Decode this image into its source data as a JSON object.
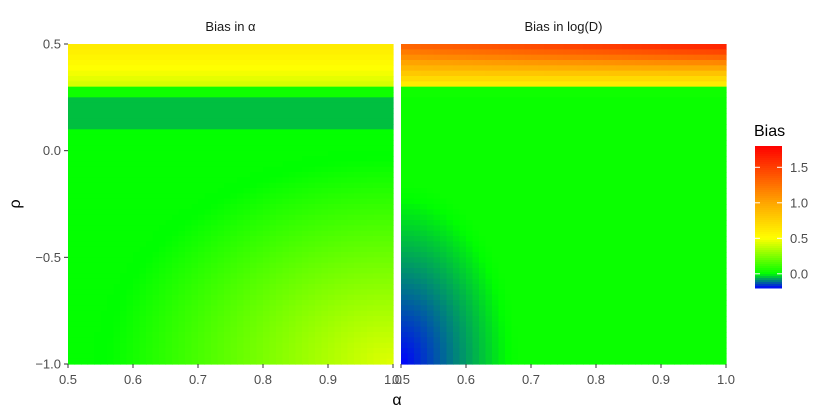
{
  "chart_data": {
    "type": "heatmap",
    "x_label": "α",
    "y_label": "ρ",
    "x_ticks": [
      "0.5",
      "0.6",
      "0.7",
      "0.8",
      "0.9",
      "1.0"
    ],
    "x_tick_values": [
      0.5,
      0.6,
      0.7,
      0.8,
      0.9,
      1.0
    ],
    "y_ticks": [
      "0.5",
      "0.0",
      "−0.5",
      "−1.0"
    ],
    "y_tick_values": [
      0.5,
      0.0,
      -0.5,
      -1.0
    ],
    "xlim": [
      0.5,
      1.0
    ],
    "ylim": [
      -1.0,
      0.5
    ],
    "panels": [
      {
        "title": "Bias in α",
        "bias_range": [
          0.0,
          0.6
        ],
        "notes": "bias grows with rho above about 0.25; near-zero band at rho about 0.2; low-bias green quarter-circle centered at alpha 1, rho -1"
      },
      {
        "title": "Bias in log(D)",
        "bias_range": [
          -0.2,
          1.8
        ],
        "notes": "high bias for rho above about 0.25 (max 1.8 at rho 0.5, alpha 1); negative bias in lower-left corner near alpha 0.5, rho -1"
      }
    ],
    "legend": {
      "title": "Bias",
      "position": "right",
      "ticks": [
        "1.5",
        "1.0",
        "0.5",
        "0.0"
      ],
      "tick_values": [
        1.5,
        1.0,
        0.5,
        0.0
      ],
      "range": [
        -0.2,
        1.8
      ],
      "colors": [
        "#0000ff",
        "#00ff00",
        "#ffff00",
        "#ffa500",
        "#ff0000"
      ],
      "color_stops": [
        -0.2,
        0.0,
        0.5,
        1.0,
        1.8
      ]
    }
  }
}
